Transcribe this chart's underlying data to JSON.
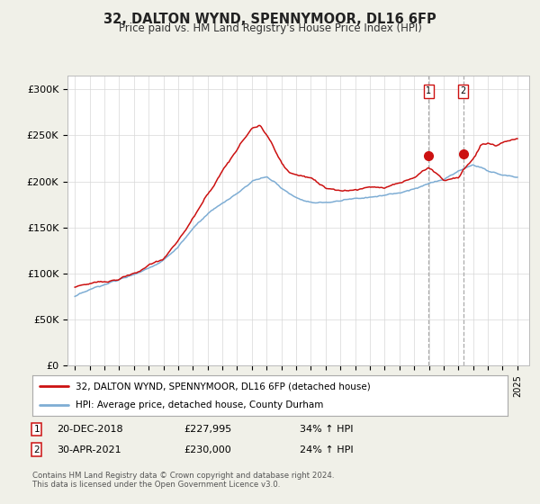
{
  "title": "32, DALTON WYND, SPENNYMOOR, DL16 6FP",
  "subtitle": "Price paid vs. HM Land Registry's House Price Index (HPI)",
  "ylabel_ticks": [
    "£0",
    "£50K",
    "£100K",
    "£150K",
    "£200K",
    "£250K",
    "£300K"
  ],
  "ytick_values": [
    0,
    50000,
    100000,
    150000,
    200000,
    250000,
    300000
  ],
  "ylim": [
    0,
    315000
  ],
  "xlim_start": 1994.5,
  "xlim_end": 2025.8,
  "hpi_color": "#7eadd4",
  "price_color": "#cc1111",
  "marker1_date": 2018.97,
  "marker1_price": 227995,
  "marker2_date": 2021.33,
  "marker2_price": 230000,
  "legend_line1": "32, DALTON WYND, SPENNYMOOR, DL16 6FP (detached house)",
  "legend_line2": "HPI: Average price, detached house, County Durham",
  "footer": "Contains HM Land Registry data © Crown copyright and database right 2024.\nThis data is licensed under the Open Government Licence v3.0.",
  "background_color": "#f0f0e8",
  "plot_bg_color": "#ffffff"
}
